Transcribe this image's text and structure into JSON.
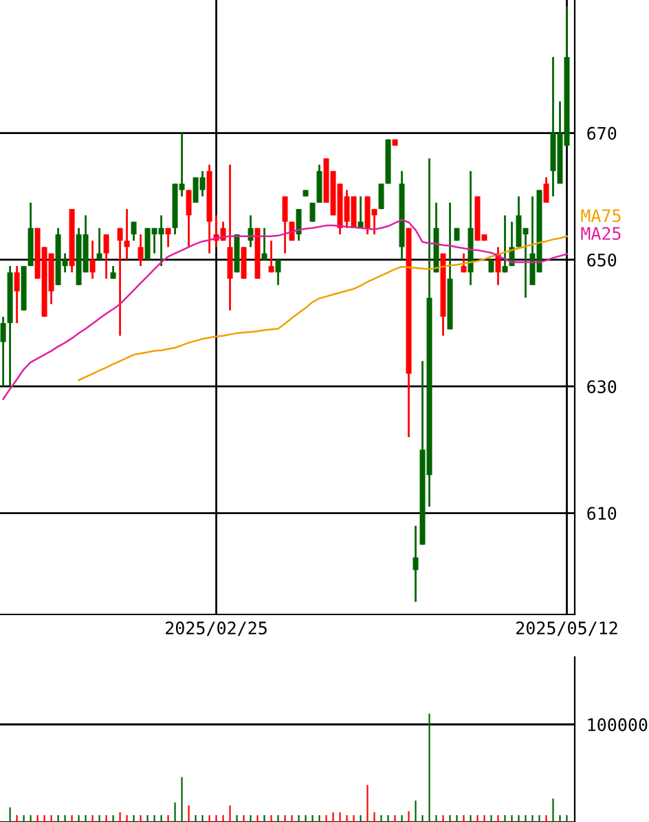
{
  "chart_data": [
    {
      "type": "candlestick",
      "categories": [
        null,
        null,
        null,
        null,
        null,
        null,
        null,
        null,
        null,
        null,
        null,
        null,
        null,
        null,
        null,
        null,
        null,
        null,
        null,
        null,
        null,
        null,
        null,
        null,
        null,
        null,
        null,
        null,
        null,
        null,
        null,
        "2025/02/25",
        null,
        null,
        null,
        null,
        null,
        null,
        null,
        null,
        null,
        null,
        null,
        null,
        null,
        null,
        null,
        null,
        null,
        null,
        null,
        null,
        null,
        null,
        null,
        null,
        null,
        null,
        null,
        null,
        null,
        null,
        null,
        null,
        null,
        null,
        null,
        null,
        null,
        null,
        null,
        null,
        null,
        null,
        null,
        null,
        null,
        null,
        null,
        null,
        null,
        null,
        "2025/05/12"
      ],
      "ohlc": [
        [
          637,
          641,
          630,
          640
        ],
        [
          640,
          649,
          630,
          648
        ],
        [
          648,
          649,
          640,
          645
        ],
        [
          642,
          649,
          642,
          649
        ],
        [
          649,
          659,
          649,
          655
        ],
        [
          655,
          655,
          647,
          647
        ],
        [
          652,
          652,
          641,
          641
        ],
        [
          651,
          651,
          643,
          645
        ],
        [
          646,
          655,
          646,
          654
        ],
        [
          649,
          651,
          648,
          650
        ],
        [
          658,
          658,
          648,
          649
        ],
        [
          646,
          655,
          646,
          654
        ],
        [
          648,
          657,
          648,
          654
        ],
        [
          650,
          653,
          647,
          648
        ],
        [
          650,
          655,
          650,
          651
        ],
        [
          654,
          654,
          647,
          651
        ],
        [
          647,
          649,
          647,
          648
        ],
        [
          655,
          655,
          638,
          653
        ],
        [
          653,
          658,
          650,
          652
        ],
        [
          654,
          656,
          653,
          656
        ],
        [
          652,
          654,
          649,
          650
        ],
        [
          650,
          655,
          650,
          655
        ],
        [
          654,
          655,
          651,
          655
        ],
        [
          654,
          657,
          649,
          655
        ],
        [
          655,
          655,
          652,
          654
        ],
        [
          655,
          662,
          654,
          662
        ],
        [
          661,
          670,
          660,
          662
        ],
        [
          661,
          661,
          652,
          657
        ],
        [
          659,
          663,
          659,
          663
        ],
        [
          661,
          664,
          660,
          663
        ],
        [
          664,
          665,
          651,
          656
        ],
        [
          654,
          657,
          652,
          653
        ],
        [
          655,
          656,
          653,
          653
        ],
        [
          652,
          665,
          642,
          647
        ],
        [
          648,
          654,
          648,
          654
        ],
        [
          652,
          652,
          647,
          647
        ],
        [
          653,
          657,
          652,
          655
        ],
        [
          655,
          655,
          647,
          647
        ],
        [
          650,
          655,
          650,
          651
        ],
        [
          649,
          653,
          648,
          648
        ],
        [
          648,
          650,
          646,
          650
        ],
        [
          660,
          660,
          651,
          656
        ],
        [
          656,
          656,
          653,
          653
        ],
        [
          654,
          658,
          653,
          658
        ],
        [
          660,
          661,
          660,
          661
        ],
        [
          656,
          659,
          656,
          659
        ],
        [
          659,
          665,
          659,
          664
        ],
        [
          666,
          666,
          659,
          659
        ],
        [
          664,
          664,
          657,
          657
        ],
        [
          662,
          662,
          654,
          655
        ],
        [
          660,
          661,
          655,
          656
        ],
        [
          660,
          660,
          655,
          655
        ],
        [
          655,
          660,
          655,
          656
        ],
        [
          660,
          660,
          654,
          655
        ],
        [
          658,
          658,
          654,
          657
        ],
        [
          658,
          662,
          658,
          662
        ],
        [
          662,
          669,
          662,
          669
        ],
        [
          669,
          669,
          668,
          668
        ],
        [
          652,
          664,
          650,
          662
        ],
        [
          655,
          655,
          622,
          632
        ],
        [
          601,
          608,
          596,
          603
        ],
        [
          605,
          634,
          605,
          620
        ],
        [
          616,
          666,
          611,
          644
        ],
        [
          648,
          659,
          648,
          655
        ],
        [
          651,
          651,
          638,
          641
        ],
        [
          639,
          659,
          639,
          647
        ],
        [
          653,
          655,
          653,
          655
        ],
        [
          649,
          651,
          648,
          648
        ],
        [
          648,
          664,
          646,
          655
        ],
        [
          660,
          660,
          653,
          653
        ],
        [
          654,
          654,
          653,
          653
        ],
        [
          648,
          650,
          648,
          650
        ],
        [
          651,
          652,
          646,
          648
        ],
        [
          648,
          657,
          648,
          649
        ],
        [
          649,
          656,
          649,
          652
        ],
        [
          652,
          660,
          652,
          657
        ],
        [
          654,
          655,
          644,
          655
        ],
        [
          646,
          660,
          646,
          651
        ],
        [
          648,
          661,
          648,
          661
        ],
        [
          662,
          663,
          659,
          659
        ],
        [
          664,
          682,
          660,
          670
        ],
        [
          662,
          675,
          662,
          670
        ],
        [
          668,
          690,
          668,
          682
        ]
      ],
      "colors": [
        "#006400",
        "#006400",
        "#ff0000",
        "#006400",
        "#006400",
        "#ff0000",
        "#ff0000",
        "#ff0000",
        "#006400",
        "#006400",
        "#ff0000",
        "#006400",
        "#006400",
        "#ff0000",
        "#006400",
        "#ff0000",
        "#006400",
        "#ff0000",
        "#ff0000",
        "#006400",
        "#ff0000",
        "#006400",
        "#006400",
        "#006400",
        "#ff0000",
        "#006400",
        "#006400",
        "#ff0000",
        "#006400",
        "#006400",
        "#ff0000",
        "#ff0000",
        "#ff0000",
        "#ff0000",
        "#006400",
        "#ff0000",
        "#006400",
        "#ff0000",
        "#006400",
        "#ff0000",
        "#006400",
        "#ff0000",
        "#ff0000",
        "#006400",
        "#006400",
        "#006400",
        "#006400",
        "#ff0000",
        "#ff0000",
        "#ff0000",
        "#ff0000",
        "#ff0000",
        "#006400",
        "#ff0000",
        "#ff0000",
        "#006400",
        "#006400",
        "#ff0000",
        "#006400",
        "#ff0000",
        "#006400",
        "#006400",
        "#006400",
        "#006400",
        "#ff0000",
        "#006400",
        "#006400",
        "#ff0000",
        "#006400",
        "#ff0000",
        "#ff0000",
        "#006400",
        "#ff0000",
        "#006400",
        "#006400",
        "#006400",
        "#006400",
        "#006400",
        "#006400",
        "#ff0000",
        "#006400",
        "#006400",
        "#006400"
      ],
      "series": [
        {
          "name": "MA75",
          "type": "line",
          "color": "#f0a000",
          "values": [
            null,
            null,
            null,
            null,
            null,
            null,
            null,
            null,
            null,
            null,
            null,
            631,
            631.5,
            632,
            632.5,
            633,
            633.5,
            634,
            634.5,
            635,
            635.2,
            635.4,
            635.6,
            635.7,
            635.9,
            636.1,
            636.5,
            636.9,
            637.2,
            637.5,
            637.7,
            637.9,
            638,
            638.2,
            638.4,
            638.5,
            638.6,
            638.7,
            638.9,
            639,
            639.1,
            639.9,
            640.8,
            641.6,
            642.4,
            643.3,
            643.9,
            644.2,
            644.5,
            644.8,
            645.1,
            645.4,
            645.9,
            646.5,
            647,
            647.5,
            648,
            648.5,
            648.9,
            648.8,
            648.7,
            648.6,
            648.5,
            648.7,
            648.9,
            649.1,
            649.2,
            649.4,
            649.6,
            649.8,
            650.1,
            650.5,
            650.8,
            651.2,
            651.5,
            651.8,
            652.1,
            652.4,
            652.7,
            652.9,
            653.2,
            653.4,
            653.7
          ]
        },
        {
          "name": "MA25",
          "type": "line",
          "color": "#e020a0",
          "values": [
            628,
            629.6,
            631.1,
            632.7,
            633.8,
            634.4,
            635,
            635.6,
            636.3,
            636.9,
            637.6,
            638.4,
            639.1,
            639.9,
            640.7,
            641.5,
            642.2,
            643,
            644.1,
            645.2,
            646.3,
            647.4,
            648.5,
            649.6,
            650.5,
            651,
            651.5,
            652,
            652.5,
            652.9,
            653.1,
            653.4,
            653.6,
            653.7,
            653.7,
            653.7,
            653.7,
            653.7,
            653.7,
            653.7,
            653.8,
            654.1,
            654.4,
            654.7,
            654.9,
            655,
            655.2,
            655.4,
            655.4,
            655.3,
            655.2,
            655.1,
            655,
            654.9,
            654.8,
            655,
            655.3,
            655.8,
            656.3,
            655.9,
            654.7,
            652.8,
            652.6,
            652.5,
            652.3,
            652.2,
            652,
            651.8,
            651.6,
            651.5,
            651.3,
            651.1,
            650.6,
            650.1,
            649.6,
            649.6,
            649.6,
            649.6,
            649.6,
            649.9,
            650.3,
            650.6,
            650.9
          ]
        }
      ],
      "ylim": [
        594,
        691
      ],
      "yticks": [
        610,
        630,
        650,
        670
      ],
      "grid": true,
      "legend": false
    },
    {
      "type": "bar",
      "tick_labels": "y",
      "ylim": [
        0,
        169000
      ],
      "yticks": [
        100000
      ],
      "grid": "y",
      "categories": [
        null,
        null,
        null,
        null,
        null,
        null,
        null,
        null,
        null,
        null,
        null,
        null,
        null,
        null,
        null,
        null,
        null,
        null,
        null,
        null,
        null,
        null,
        null,
        null,
        null,
        null,
        null,
        null,
        null,
        null,
        null,
        null,
        null,
        null,
        null,
        null,
        null,
        null,
        null,
        null,
        null,
        null,
        null,
        null,
        null,
        null,
        null,
        null,
        null,
        null,
        null,
        null,
        null,
        null,
        null,
        null,
        null,
        null,
        null,
        null,
        null,
        null,
        null,
        null,
        null,
        null,
        null,
        null,
        null,
        null,
        null,
        null,
        null,
        null,
        null,
        null,
        null,
        null,
        null,
        null,
        null,
        null,
        null
      ],
      "values": [
        null,
        15000,
        7000,
        7000,
        7000,
        7000,
        7000,
        7000,
        7000,
        7000,
        7000,
        7000,
        7000,
        7000,
        7000,
        7000,
        7000,
        10000,
        7000,
        7000,
        7000,
        7000,
        7000,
        7000,
        7000,
        20000,
        46000,
        17000,
        7000,
        7000,
        7000,
        7000,
        7000,
        17000,
        7000,
        7000,
        7000,
        7000,
        7000,
        7000,
        7000,
        7000,
        7000,
        7000,
        7000,
        7000,
        7000,
        7000,
        10000,
        10000,
        7000,
        7000,
        7000,
        38000,
        10000,
        7000,
        7000,
        7000,
        7000,
        11000,
        22000,
        7000,
        111000,
        7000,
        7000,
        7000,
        7000,
        7000,
        7000,
        7000,
        7000,
        7000,
        7000,
        7000,
        7000,
        7000,
        7000,
        7000,
        7000,
        7000,
        24000,
        7000,
        7000
      ],
      "colors": [
        "#006400",
        "#006400",
        "#ff0000",
        "#006400",
        "#006400",
        "#ff0000",
        "#ff0000",
        "#ff0000",
        "#006400",
        "#006400",
        "#ff0000",
        "#006400",
        "#006400",
        "#ff0000",
        "#006400",
        "#ff0000",
        "#006400",
        "#ff0000",
        "#ff0000",
        "#006400",
        "#ff0000",
        "#006400",
        "#006400",
        "#006400",
        "#ff0000",
        "#006400",
        "#006400",
        "#ff0000",
        "#006400",
        "#006400",
        "#ff0000",
        "#ff0000",
        "#ff0000",
        "#ff0000",
        "#006400",
        "#ff0000",
        "#006400",
        "#ff0000",
        "#006400",
        "#ff0000",
        "#006400",
        "#ff0000",
        "#ff0000",
        "#006400",
        "#006400",
        "#006400",
        "#006400",
        "#ff0000",
        "#ff0000",
        "#ff0000",
        "#ff0000",
        "#ff0000",
        "#006400",
        "#ff0000",
        "#ff0000",
        "#006400",
        "#006400",
        "#ff0000",
        "#006400",
        "#ff0000",
        "#006400",
        "#006400",
        "#006400",
        "#006400",
        "#ff0000",
        "#006400",
        "#006400",
        "#ff0000",
        "#006400",
        "#ff0000",
        "#ff0000",
        "#006400",
        "#ff0000",
        "#006400",
        "#006400",
        "#006400",
        "#006400",
        "#006400",
        "#006400",
        "#ff0000",
        "#006400",
        "#006400",
        "#006400"
      ],
      "legend": false
    }
  ]
}
